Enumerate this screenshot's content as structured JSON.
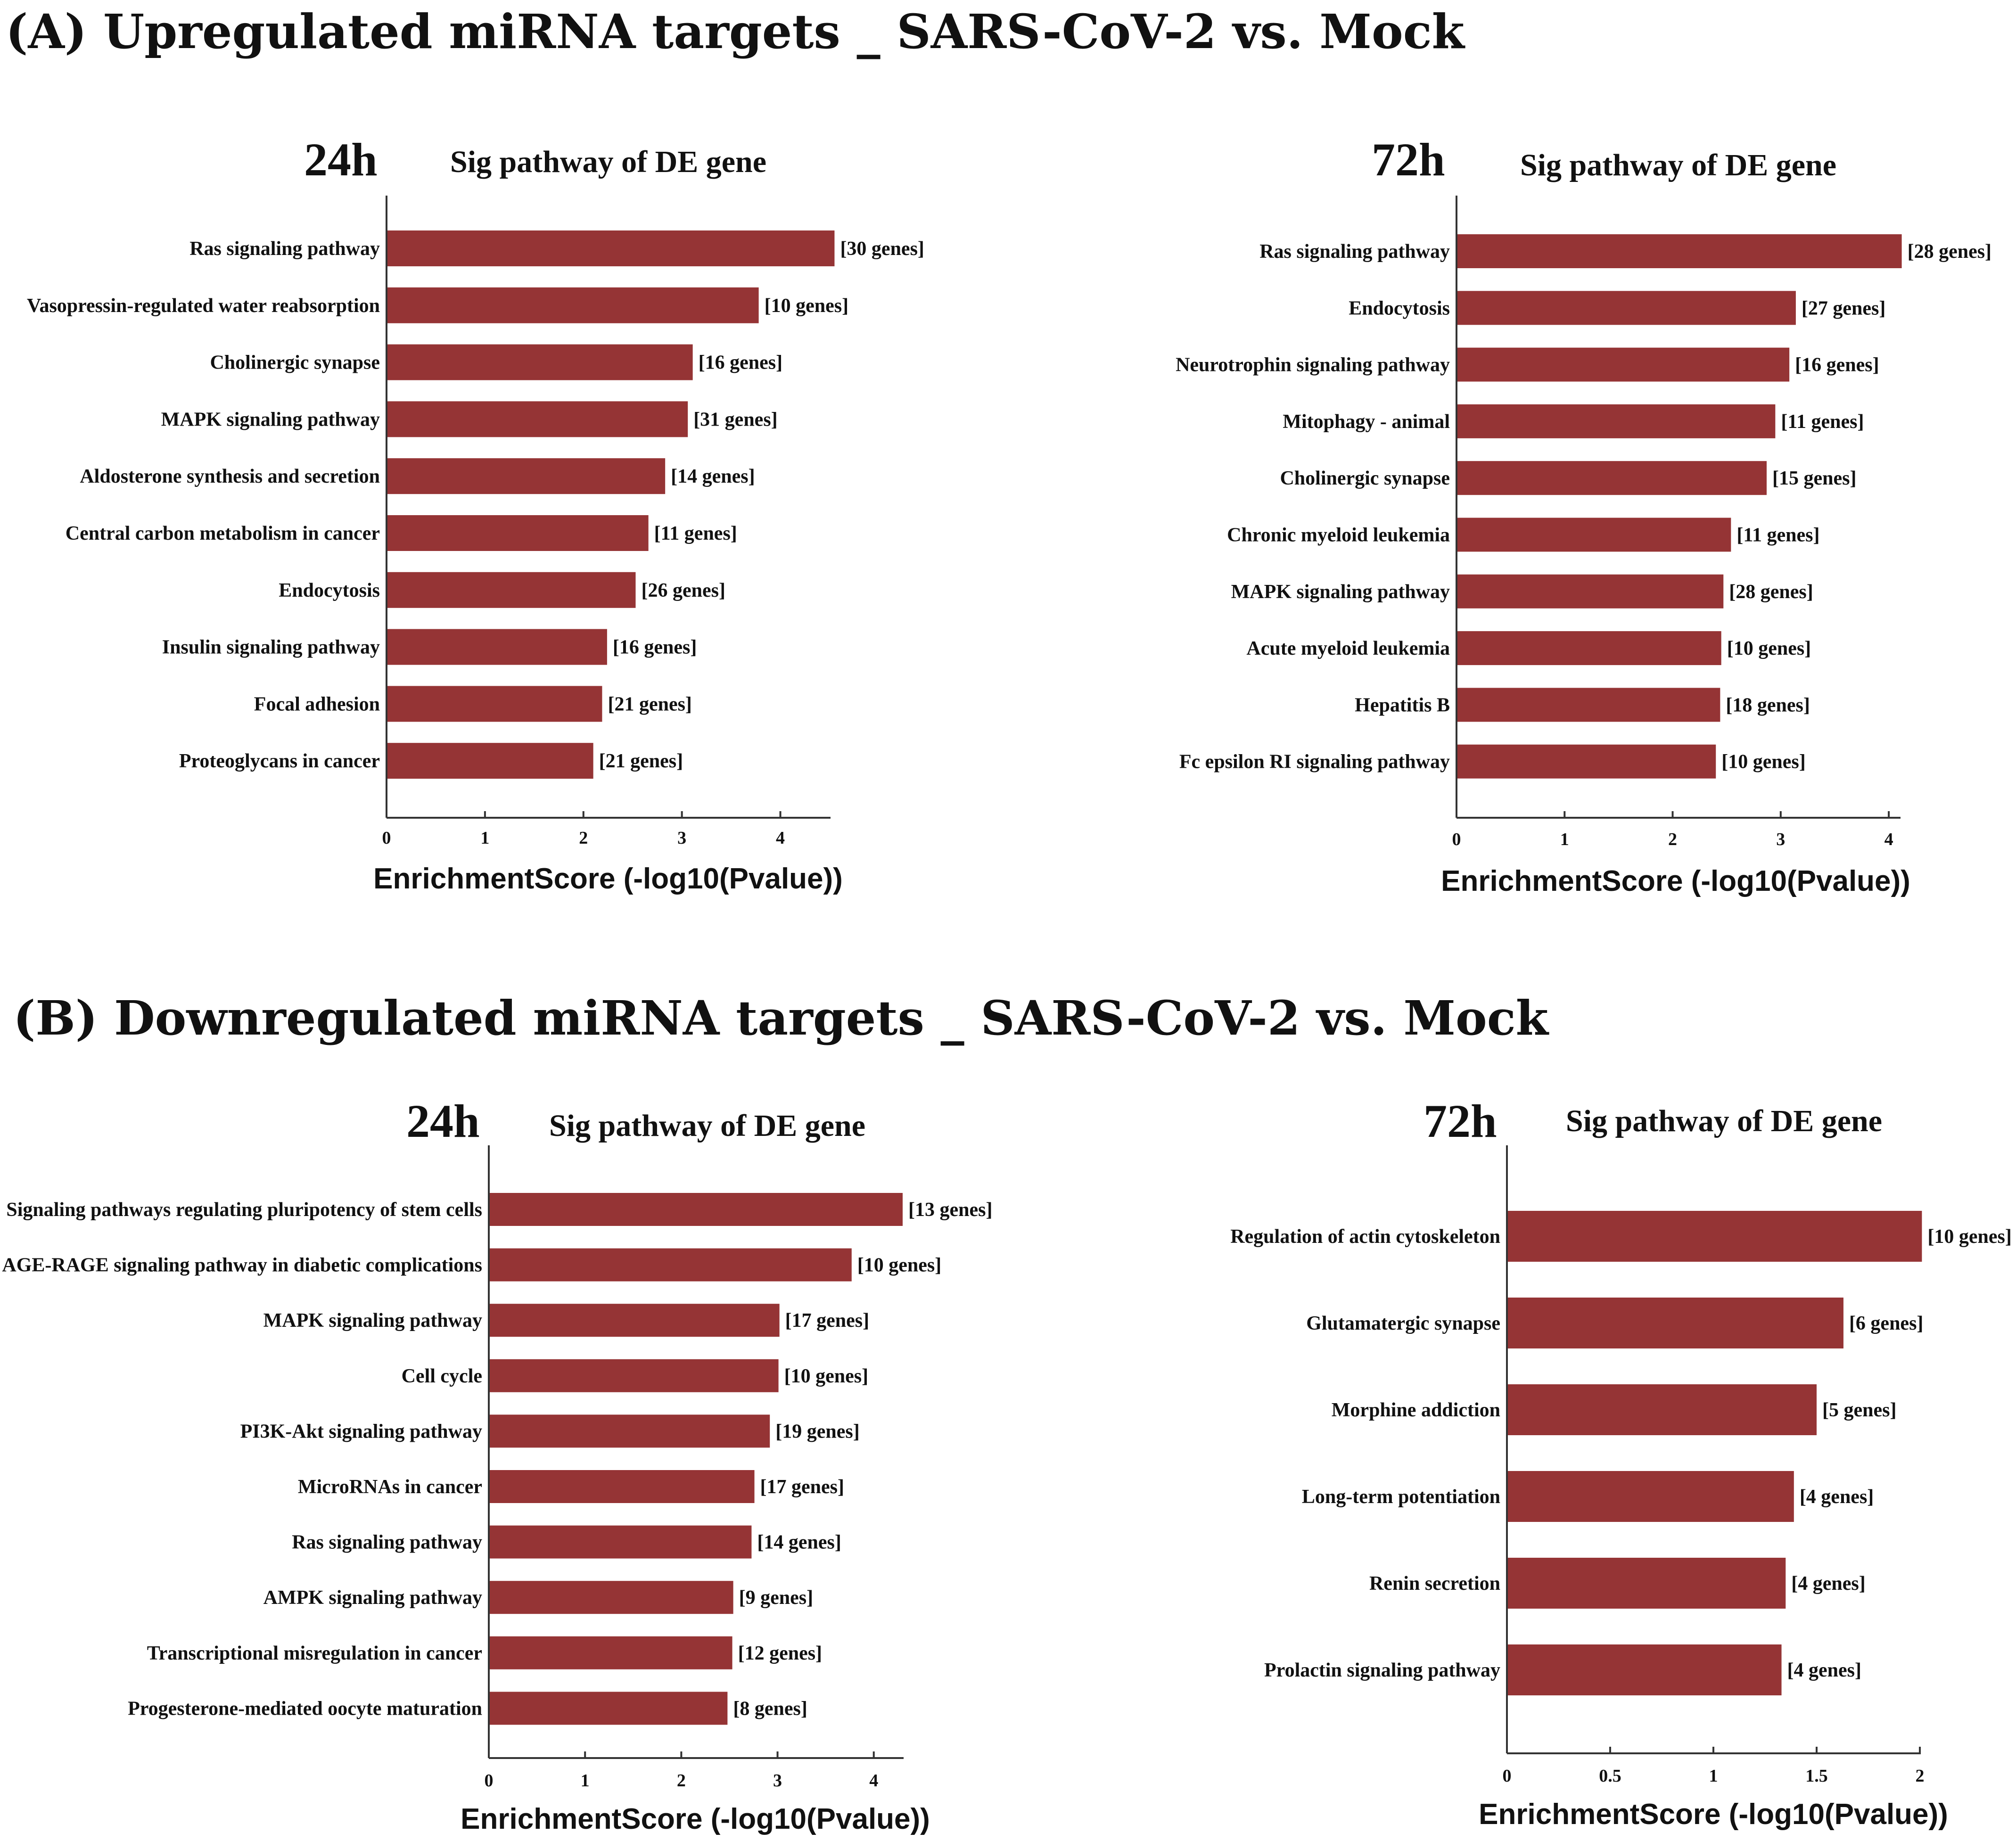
{
  "colors": {
    "bar": "#953435",
    "text": "#111111",
    "axis": "#333333"
  },
  "section_a": {
    "title": "(A) Upregulated miRNA targets _ SARS-CoV-2 vs. Mock"
  },
  "section_b": {
    "title": "(B) Downregulated miRNA targets _ SARS-CoV-2 vs. Mock"
  },
  "chart_data": [
    {
      "type": "bar",
      "orientation": "horizontal",
      "section": "A",
      "time": "24h",
      "title": "Sig pathway of DE gene",
      "xlabel": "EnrichmentScore (-log10(Pvalue))",
      "ylabel": "",
      "xlim": [
        0,
        4.5
      ],
      "xticks": [
        "0",
        "1",
        "2",
        "3",
        "4"
      ],
      "categories": [
        "Ras signaling pathway",
        "Vasopressin-regulated water reabsorption",
        "Cholinergic synapse",
        "MAPK signaling pathway",
        "Aldosterone synthesis and secretion",
        "Central carbon metabolism in cancer",
        "Endocytosis",
        "Insulin signaling pathway",
        "Focal adhesion",
        "Proteoglycans in cancer"
      ],
      "values": [
        4.55,
        3.78,
        3.11,
        3.06,
        2.83,
        2.66,
        2.53,
        2.24,
        2.19,
        2.1
      ],
      "labels": [
        "[30 genes]",
        "[10 genes]",
        "[16 genes]",
        "[31 genes]",
        "[14 genes]",
        "[11 genes]",
        "[26 genes]",
        "[16 genes]",
        "[21 genes]",
        "[21 genes]"
      ]
    },
    {
      "type": "bar",
      "orientation": "horizontal",
      "section": "A",
      "time": "72h",
      "title": "Sig pathway of DE gene",
      "xlabel": "EnrichmentScore (-log10(Pvalue))",
      "ylabel": "",
      "xlim": [
        0,
        4.1
      ],
      "xticks": [
        "0",
        "1",
        "2",
        "3",
        "4"
      ],
      "categories": [
        "Ras signaling pathway",
        "Endocytosis",
        "Neurotrophin signaling pathway",
        "Mitophagy - animal",
        "Cholinergic synapse",
        "Chronic myeloid leukemia",
        "MAPK signaling pathway",
        "Acute myeloid leukemia",
        "Hepatitis B",
        "Fc epsilon RI signaling pathway"
      ],
      "values": [
        4.12,
        3.14,
        3.08,
        2.95,
        2.87,
        2.54,
        2.47,
        2.45,
        2.44,
        2.4
      ],
      "labels": [
        "[28 genes]",
        "[27 genes]",
        "[16 genes]",
        "[11 genes]",
        "[15 genes]",
        "[11 genes]",
        "[28 genes]",
        "[10 genes]",
        "[18 genes]",
        "[10 genes]"
      ]
    },
    {
      "type": "bar",
      "orientation": "horizontal",
      "section": "B",
      "time": "24h",
      "title": "Sig pathway of DE gene",
      "xlabel": "EnrichmentScore (-log10(Pvalue))",
      "ylabel": "",
      "xlim": [
        0,
        4.3
      ],
      "xticks": [
        "0",
        "1",
        "2",
        "3",
        "4"
      ],
      "categories": [
        "Signaling pathways regulating pluripotency of stem cells",
        "AGE-RAGE signaling pathway in diabetic complications",
        "MAPK signaling pathway",
        "Cell cycle",
        "PI3K-Akt signaling pathway",
        "MicroRNAs in cancer",
        "Ras signaling pathway",
        "AMPK signaling pathway",
        "Transcriptional misregulation in cancer",
        "Progesterone-mediated oocyte maturation"
      ],
      "values": [
        4.3,
        3.77,
        3.02,
        3.01,
        2.92,
        2.76,
        2.73,
        2.54,
        2.53,
        2.48
      ],
      "labels": [
        "[13 genes]",
        "[10 genes]",
        "[17 genes]",
        "[10 genes]",
        "[19 genes]",
        "[17 genes]",
        "[14 genes]",
        "[9 genes]",
        "[12 genes]",
        "[8 genes]"
      ]
    },
    {
      "type": "bar",
      "orientation": "horizontal",
      "section": "B",
      "time": "72h",
      "title": "Sig pathway of DE gene",
      "xlabel": "EnrichmentScore (-log10(Pvalue))",
      "ylabel": "",
      "xlim": [
        0,
        2
      ],
      "xticks": [
        "0",
        "0.5",
        "1",
        "1.5",
        "2"
      ],
      "categories": [
        "Regulation of actin cytoskeleton",
        "Glutamatergic synapse",
        "Morphine addiction",
        "Long-term potentiation",
        "Renin secretion",
        "Prolactin signaling pathway"
      ],
      "values": [
        2.01,
        1.63,
        1.5,
        1.39,
        1.35,
        1.33
      ],
      "labels": [
        "[10 genes]",
        "[6 genes]",
        "[5 genes]",
        "[4 genes]",
        "[4 genes]",
        "[4 genes]"
      ]
    }
  ]
}
